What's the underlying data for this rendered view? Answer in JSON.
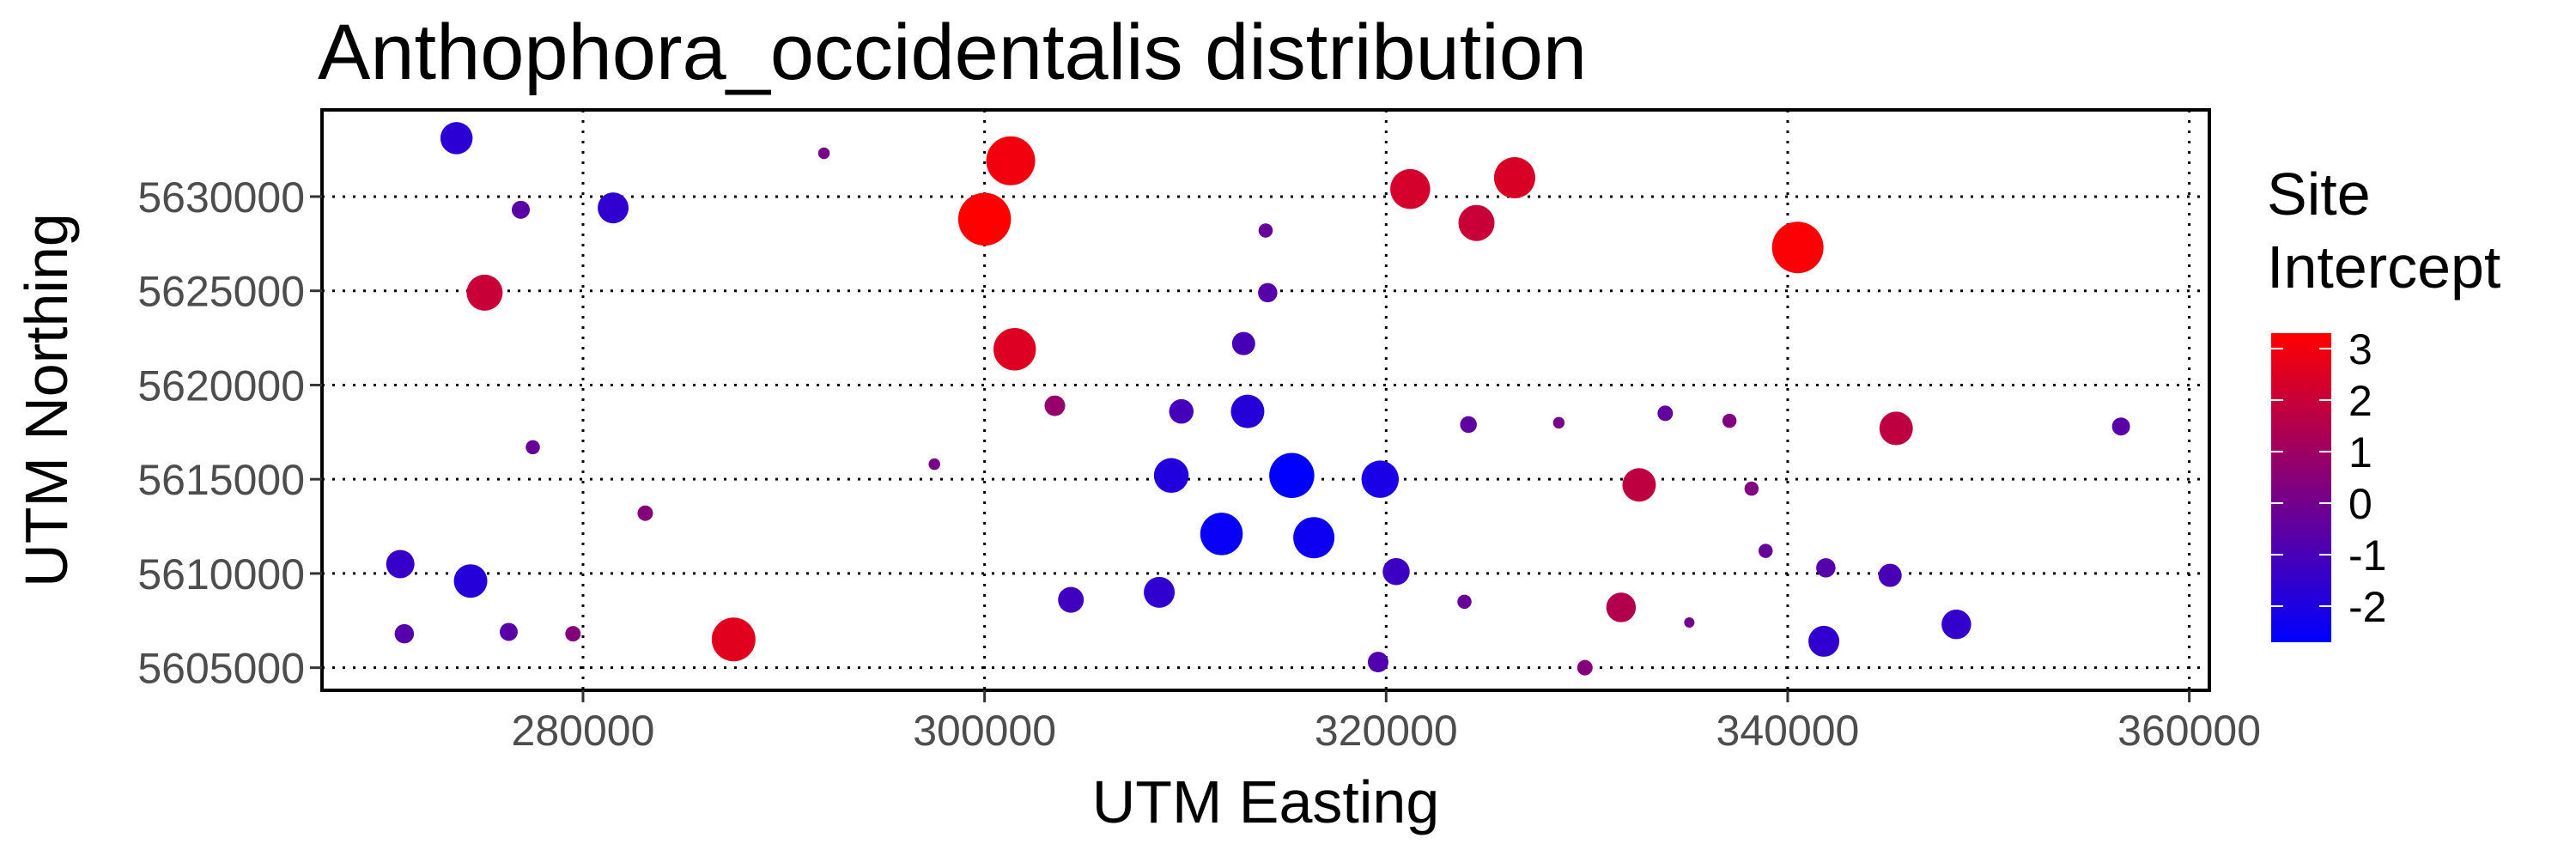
{
  "chart_data": {
    "type": "scatter",
    "title": "Anthophora_occidentalis distribution",
    "xlabel": "UTM Easting",
    "ylabel": "UTM Northing",
    "xlim": [
      267000,
      361000
    ],
    "ylim": [
      5603800,
      5634600
    ],
    "x_ticks": [
      280000,
      300000,
      320000,
      340000,
      360000
    ],
    "y_ticks": [
      5605000,
      5610000,
      5615000,
      5620000,
      5625000,
      5630000
    ],
    "x_tick_labels": [
      "280000",
      "300000",
      "320000",
      "340000",
      "360000"
    ],
    "y_tick_labels": [
      "5605000",
      "5610000",
      "5615000",
      "5620000",
      "5625000",
      "5630000"
    ],
    "grid": true,
    "grid_style": "dotted",
    "legend": {
      "title_lines": [
        "Site",
        "Intercept"
      ],
      "position": "right",
      "min": -2.7,
      "max": 3.3,
      "ticks": [
        3,
        2,
        1,
        0,
        -1,
        -2
      ],
      "tick_labels": [
        "3",
        "2",
        "1",
        "0",
        "-1",
        "-2"
      ],
      "color_low": "#0000ff",
      "color_high": "#ff0000"
    },
    "points": [
      {
        "x": 273700,
        "y": 5633100,
        "v": -1.7
      },
      {
        "x": 276900,
        "y": 5629300,
        "v": -0.6
      },
      {
        "x": 281500,
        "y": 5629400,
        "v": -1.6
      },
      {
        "x": 275100,
        "y": 5624900,
        "v": 2.0
      },
      {
        "x": 292000,
        "y": 5632300,
        "v": 0.1
      },
      {
        "x": 301300,
        "y": 5631900,
        "v": 3.0
      },
      {
        "x": 300000,
        "y": 5628800,
        "v": 3.3
      },
      {
        "x": 314000,
        "y": 5628200,
        "v": -0.3
      },
      {
        "x": 321200,
        "y": 5630400,
        "v": 2.3
      },
      {
        "x": 324500,
        "y": 5628600,
        "v": 2.0
      },
      {
        "x": 326400,
        "y": 5631000,
        "v": 2.4
      },
      {
        "x": 340500,
        "y": 5627300,
        "v": 3.2
      },
      {
        "x": 314100,
        "y": 5624900,
        "v": -0.7
      },
      {
        "x": 301500,
        "y": 5621900,
        "v": 2.5
      },
      {
        "x": 312900,
        "y": 5622200,
        "v": -1.0
      },
      {
        "x": 303500,
        "y": 5618900,
        "v": 0.8
      },
      {
        "x": 309800,
        "y": 5618600,
        "v": -1.1
      },
      {
        "x": 313100,
        "y": 5618600,
        "v": -1.8
      },
      {
        "x": 324100,
        "y": 5617900,
        "v": -0.5
      },
      {
        "x": 328600,
        "y": 5618000,
        "v": 0.1
      },
      {
        "x": 333900,
        "y": 5618500,
        "v": -0.4
      },
      {
        "x": 337100,
        "y": 5618100,
        "v": 0.3
      },
      {
        "x": 345400,
        "y": 5617700,
        "v": 1.8
      },
      {
        "x": 356600,
        "y": 5617800,
        "v": -0.6
      },
      {
        "x": 277500,
        "y": 5616700,
        "v": -0.3
      },
      {
        "x": 297500,
        "y": 5615800,
        "v": 0.1
      },
      {
        "x": 309300,
        "y": 5615200,
        "v": -1.9
      },
      {
        "x": 315300,
        "y": 5615200,
        "v": -2.7
      },
      {
        "x": 319700,
        "y": 5615000,
        "v": -2.1
      },
      {
        "x": 332600,
        "y": 5614700,
        "v": 1.8
      },
      {
        "x": 338200,
        "y": 5614500,
        "v": 0.3
      },
      {
        "x": 283100,
        "y": 5613200,
        "v": 0.4
      },
      {
        "x": 311800,
        "y": 5612100,
        "v": -2.5
      },
      {
        "x": 316400,
        "y": 5611900,
        "v": -2.4
      },
      {
        "x": 338900,
        "y": 5611200,
        "v": -0.3
      },
      {
        "x": 270900,
        "y": 5610500,
        "v": -1.4
      },
      {
        "x": 274400,
        "y": 5609600,
        "v": -1.8
      },
      {
        "x": 320500,
        "y": 5610100,
        "v": -1.3
      },
      {
        "x": 341900,
        "y": 5610300,
        "v": -0.7
      },
      {
        "x": 345100,
        "y": 5609900,
        "v": -1.0
      },
      {
        "x": 304300,
        "y": 5608600,
        "v": -1.2
      },
      {
        "x": 308700,
        "y": 5609000,
        "v": -1.6
      },
      {
        "x": 323900,
        "y": 5608500,
        "v": -0.3
      },
      {
        "x": 331700,
        "y": 5608200,
        "v": 1.5
      },
      {
        "x": 271100,
        "y": 5606800,
        "v": -0.7
      },
      {
        "x": 276300,
        "y": 5606900,
        "v": -0.6
      },
      {
        "x": 279500,
        "y": 5606800,
        "v": 0.4
      },
      {
        "x": 287500,
        "y": 5606500,
        "v": 2.6
      },
      {
        "x": 335100,
        "y": 5607400,
        "v": 0.0
      },
      {
        "x": 341800,
        "y": 5606400,
        "v": -1.6
      },
      {
        "x": 348400,
        "y": 5607300,
        "v": -1.5
      },
      {
        "x": 319600,
        "y": 5605300,
        "v": -0.8
      },
      {
        "x": 329900,
        "y": 5605000,
        "v": 0.4
      }
    ]
  }
}
